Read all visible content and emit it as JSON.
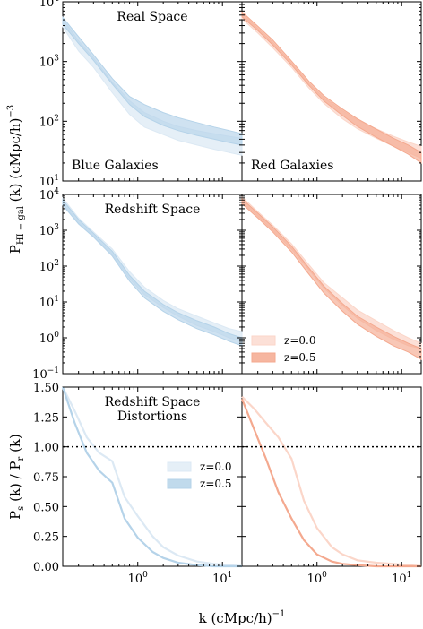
{
  "figure": {
    "ylabel_top": "P",
    "ylabel_top_sub": "HI − gal",
    "ylabel_top_rest": " (k) (cMpc/h)",
    "ylabel_top_sup": "−3",
    "ylabel_bottom_a": "P",
    "ylabel_bottom_a_sub": "s",
    "ylabel_bottom_b": " (k) / P",
    "ylabel_bottom_b_sub": "r",
    "ylabel_bottom_c": " (k)",
    "xlabel": "k (cMpc/h)",
    "xlabel_sup": "−1"
  },
  "colors": {
    "blue_z0": "#dce9f4",
    "blue_z05": "#b5d3e9",
    "red_z0": "#fbd6c9",
    "red_z05": "#f4a98f",
    "unity_line": "#000000"
  },
  "chart_data": [
    {
      "type": "area",
      "panel": "real-space-blue",
      "title": "Real Space",
      "annotation": "Blue Galaxies",
      "xscale": "log",
      "yscale": "log",
      "xlim": [
        0.13,
        17
      ],
      "ylim": [
        10,
        10000
      ],
      "yticks": [
        "10^1",
        "10^2",
        "10^3",
        "10^4"
      ],
      "series": [
        {
          "name": "z=0.0",
          "x": [
            0.13,
            0.2,
            0.3,
            0.5,
            0.8,
            1.2,
            2,
            3,
            5,
            8,
            12,
            17
          ],
          "lower": [
            3800,
            1500,
            800,
            300,
            130,
            80,
            60,
            48,
            40,
            34,
            30,
            27
          ],
          "upper": [
            5200,
            2200,
            1150,
            450,
            220,
            140,
            100,
            82,
            70,
            62,
            56,
            52
          ]
        },
        {
          "name": "z=0.5",
          "x": [
            0.13,
            0.2,
            0.3,
            0.5,
            0.8,
            1.2,
            2,
            3,
            5,
            8,
            12,
            17
          ],
          "lower": [
            4200,
            2000,
            1050,
            420,
            190,
            120,
            85,
            70,
            58,
            50,
            44,
            40
          ],
          "upper": [
            5500,
            2600,
            1300,
            520,
            260,
            190,
            140,
            115,
            95,
            80,
            70,
            62
          ]
        }
      ]
    },
    {
      "type": "area",
      "panel": "real-space-red",
      "annotation": "Red Galaxies",
      "xscale": "log",
      "yscale": "log",
      "xlim": [
        0.13,
        17
      ],
      "ylim": [
        10,
        10000
      ],
      "series": [
        {
          "name": "z=0.0",
          "x": [
            0.13,
            0.2,
            0.3,
            0.5,
            0.8,
            1.2,
            2,
            3,
            5,
            8,
            12,
            17
          ],
          "lower": [
            5200,
            3000,
            1700,
            800,
            360,
            200,
            110,
            75,
            52,
            38,
            30,
            24
          ],
          "upper": [
            6400,
            3600,
            2100,
            950,
            430,
            250,
            150,
            105,
            75,
            56,
            45,
            38
          ]
        },
        {
          "name": "z=0.5",
          "x": [
            0.13,
            0.2,
            0.3,
            0.5,
            0.8,
            1.2,
            2,
            3,
            5,
            8,
            12,
            17
          ],
          "lower": [
            5600,
            3300,
            1900,
            880,
            400,
            220,
            125,
            82,
            54,
            38,
            28,
            20
          ],
          "upper": [
            6800,
            3900,
            2300,
            1020,
            470,
            270,
            160,
            110,
            74,
            52,
            40,
            30
          ]
        }
      ]
    },
    {
      "type": "area",
      "panel": "redshift-space-blue",
      "title": "Redshift Space",
      "xscale": "log",
      "yscale": "log",
      "xlim": [
        0.13,
        17
      ],
      "ylim": [
        0.1,
        10000
      ],
      "yticks": [
        "10^-1",
        "10^0",
        "10^1",
        "10^2",
        "10^3",
        "10^4"
      ],
      "series": [
        {
          "name": "z=0.0",
          "x": [
            0.13,
            0.2,
            0.3,
            0.5,
            0.8,
            1.2,
            2,
            3,
            5,
            8,
            12,
            17
          ],
          "lower": [
            5500,
            1600,
            700,
            210,
            45,
            16,
            7,
            4,
            2.2,
            1.5,
            1.0,
            0.8
          ],
          "upper": [
            8000,
            2200,
            900,
            300,
            70,
            26,
            11,
            6.5,
            4,
            2.6,
            1.8,
            1.5
          ]
        },
        {
          "name": "z=0.5",
          "x": [
            0.13,
            0.2,
            0.3,
            0.5,
            0.8,
            1.2,
            2,
            3,
            5,
            8,
            12,
            17
          ],
          "lower": [
            5000,
            1500,
            650,
            190,
            38,
            13,
            5.5,
            3.2,
            1.8,
            1.2,
            0.8,
            0.6
          ],
          "upper": [
            7000,
            2000,
            820,
            260,
            55,
            20,
            8.5,
            5,
            3,
            2,
            1.3,
            1.0
          ]
        }
      ]
    },
    {
      "type": "area",
      "panel": "redshift-space-red",
      "xscale": "log",
      "yscale": "log",
      "xlim": [
        0.13,
        17
      ],
      "ylim": [
        0.1,
        10000
      ],
      "legend": {
        "placement": "lower-left",
        "entries": [
          "z=0.0",
          "z=0.5"
        ]
      },
      "series": [
        {
          "name": "z=0.0",
          "x": [
            0.13,
            0.2,
            0.3,
            0.5,
            0.8,
            1.2,
            2,
            3,
            5,
            8,
            12,
            17
          ],
          "lower": [
            6000,
            2500,
            1000,
            300,
            80,
            25,
            8,
            3.5,
            1.6,
            0.9,
            0.6,
            0.5
          ],
          "upper": [
            8500,
            3300,
            1400,
            420,
            110,
            35,
            13,
            6,
            3,
            1.6,
            1.0,
            0.7
          ]
        },
        {
          "name": "z=0.5",
          "x": [
            0.13,
            0.2,
            0.3,
            0.5,
            0.8,
            1.2,
            2,
            3,
            5,
            8,
            12,
            17
          ],
          "lower": [
            5500,
            2200,
            900,
            250,
            60,
            18,
            5.5,
            2.4,
            1.1,
            0.6,
            0.4,
            0.25
          ],
          "upper": [
            7500,
            3000,
            1250,
            360,
            90,
            28,
            9,
            4,
            2,
            1.1,
            0.7,
            0.5
          ]
        }
      ]
    },
    {
      "type": "line",
      "panel": "rsd-ratio-blue",
      "title": "Redshift Space",
      "subtitle": "Distortions",
      "xscale": "log",
      "xlim": [
        0.13,
        17
      ],
      "ylim": [
        0.0,
        1.5
      ],
      "yticks": [
        "0.00",
        "0.25",
        "0.50",
        "0.75",
        "1.00",
        "1.25",
        "1.50"
      ],
      "xticks": [
        "10^0",
        "10^1"
      ],
      "reference_line": 1.0,
      "legend": {
        "placement": "center-right",
        "entries": [
          "z=0.0",
          "z=0.5"
        ]
      },
      "series": [
        {
          "name": "z=0.0",
          "x": [
            0.13,
            0.18,
            0.25,
            0.35,
            0.5,
            0.7,
            1.0,
            1.5,
            2,
            3,
            5,
            8,
            12,
            17
          ],
          "y": [
            1.5,
            1.3,
            1.08,
            0.95,
            0.88,
            0.58,
            0.42,
            0.25,
            0.16,
            0.09,
            0.04,
            0.02,
            0.01,
            0.0
          ]
        },
        {
          "name": "z=0.5",
          "x": [
            0.13,
            0.18,
            0.25,
            0.35,
            0.5,
            0.7,
            1.0,
            1.5,
            2,
            3,
            5,
            8,
            12,
            17
          ],
          "y": [
            1.5,
            1.2,
            0.95,
            0.8,
            0.7,
            0.4,
            0.24,
            0.12,
            0.07,
            0.03,
            0.01,
            0.0,
            0.0,
            0.0
          ]
        }
      ]
    },
    {
      "type": "line",
      "panel": "rsd-ratio-red",
      "xscale": "log",
      "xlim": [
        0.13,
        17
      ],
      "ylim": [
        0.0,
        1.5
      ],
      "xticks": [
        "10^0",
        "10^1"
      ],
      "reference_line": 1.0,
      "series": [
        {
          "name": "z=0.0",
          "x": [
            0.13,
            0.18,
            0.25,
            0.35,
            0.5,
            0.7,
            1.0,
            1.5,
            2,
            3,
            5,
            8,
            12,
            17
          ],
          "y": [
            1.42,
            1.32,
            1.2,
            1.08,
            0.9,
            0.55,
            0.32,
            0.16,
            0.1,
            0.05,
            0.03,
            0.02,
            0.01,
            0.0
          ]
        },
        {
          "name": "z=0.5",
          "x": [
            0.13,
            0.18,
            0.25,
            0.35,
            0.5,
            0.7,
            1.0,
            1.5,
            2,
            3,
            5,
            8,
            12,
            17
          ],
          "y": [
            1.4,
            1.15,
            0.9,
            0.62,
            0.4,
            0.22,
            0.1,
            0.04,
            0.02,
            0.01,
            0.0,
            0.0,
            0.0,
            0.0
          ]
        }
      ]
    }
  ]
}
